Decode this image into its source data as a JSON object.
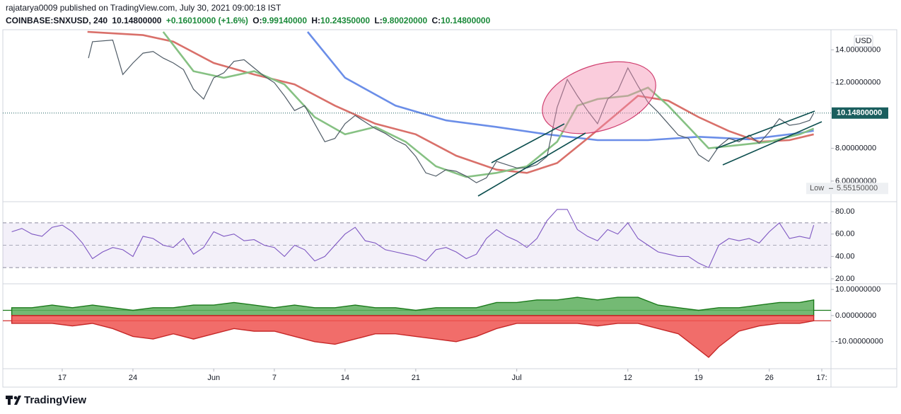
{
  "header": {
    "publisher": "rajatarya0009 published on TradingView.com, July 30, 2021 09:00:18 IST",
    "symbol": "COINBASE:SNXUSD, 240",
    "price": "10.14800000",
    "change": "+0.16010000 (+1.6%)",
    "open_key": "O:",
    "open": "9.99140000",
    "high_key": "H:",
    "high": "10.24350000",
    "low_key": "L:",
    "low": "9.80020000",
    "close_key": "C:",
    "close": "10.14800000"
  },
  "chart_data": [
    {
      "type": "line",
      "xlim": [
        11.4,
        92.9
      ],
      "ylim": [
        4.83,
        15.1
      ],
      "currency": "USD",
      "yticks": [
        {
          "value": 6,
          "label": "6.00000000"
        },
        {
          "value": 8,
          "label": "8.00000000"
        },
        {
          "value": 12,
          "label": "12.00000000"
        },
        {
          "value": 14,
          "label": "14.00000000"
        }
      ],
      "last_price": {
        "value": 10.148,
        "label": "10.14800000",
        "color": "#1a5e5e"
      },
      "low_marker": {
        "text": "Low",
        "value": 5.5515,
        "label": "5.55150000"
      },
      "series": [
        {
          "color": "#6b8ee8",
          "x": [
            41.3,
            45,
            50,
            55,
            60,
            65,
            70,
            75,
            80,
            85,
            90,
            91.4
          ],
          "values": [
            15.1,
            12.3,
            10.6,
            9.7,
            9.3,
            8.85,
            8.5,
            8.5,
            8.7,
            8.55,
            8.93,
            9.07
          ]
        },
        {
          "color": "#d9706a",
          "x": [
            19.5,
            25,
            28,
            32,
            36,
            40,
            44,
            48,
            52,
            56,
            60,
            63,
            66,
            69,
            72,
            74,
            77,
            80,
            83,
            86,
            89,
            91.4
          ],
          "values": [
            15.1,
            14.9,
            14.5,
            13.2,
            12.5,
            11.9,
            10.6,
            9.5,
            8.85,
            7.55,
            6.7,
            6.5,
            7.1,
            8.6,
            10.15,
            11.2,
            10.9,
            9.9,
            9.05,
            8.4,
            8.5,
            8.85
          ]
        },
        {
          "color": "#86c183",
          "x": [
            27,
            30,
            33,
            36,
            39,
            42,
            45,
            48,
            51,
            54,
            57,
            60,
            63,
            66,
            68,
            70,
            73,
            75,
            77,
            79,
            81,
            84,
            87,
            90,
            91.4
          ],
          "values": [
            15.1,
            12.7,
            12.3,
            12.7,
            11.9,
            9.9,
            8.85,
            9.3,
            8.4,
            6.9,
            6.25,
            6.5,
            6.9,
            8.4,
            10.6,
            11.0,
            11.2,
            11.7,
            10.6,
            9.3,
            8.0,
            8.2,
            8.4,
            8.85,
            9.2
          ]
        },
        {
          "color": "#4f5b66",
          "x": [
            19.6,
            20,
            22,
            23,
            24,
            25,
            26,
            27,
            28,
            29,
            30,
            31,
            32,
            33,
            34,
            35,
            36,
            37,
            38,
            39,
            40,
            41,
            42,
            43,
            44,
            45,
            46,
            47,
            48,
            49,
            50,
            51,
            52,
            53,
            54,
            55,
            56,
            57,
            58,
            59,
            60,
            61,
            62,
            63,
            64,
            65,
            66,
            67,
            68,
            69,
            70,
            71,
            72,
            73,
            74,
            75,
            76,
            77,
            78,
            79,
            80,
            81,
            82,
            83,
            84,
            85,
            86,
            87,
            88,
            89,
            90,
            91,
            91.4
          ],
          "values": [
            13.5,
            14.5,
            14.6,
            12.5,
            13.2,
            13.8,
            13.9,
            13.5,
            13.2,
            12.8,
            11.6,
            11.0,
            12.3,
            12.6,
            13.3,
            13.4,
            12.9,
            12.4,
            12.0,
            11.2,
            10.3,
            10.6,
            9.5,
            8.4,
            8.6,
            9.5,
            10.0,
            9.6,
            9.2,
            8.9,
            8.5,
            8.2,
            7.5,
            6.5,
            6.3,
            6.7,
            6.6,
            6.3,
            5.9,
            6.2,
            7.2,
            7.0,
            6.8,
            6.8,
            7.0,
            7.5,
            10.5,
            12.2,
            11.2,
            10.3,
            9.5,
            11.0,
            11.5,
            12.9,
            11.8,
            10.8,
            10.2,
            9.5,
            8.8,
            8.6,
            7.6,
            7.2,
            8.1,
            8.6,
            8.4,
            8.8,
            8.3,
            9.0,
            9.8,
            9.4,
            9.5,
            9.7,
            10.148
          ]
        }
      ]
    },
    {
      "type": "line",
      "xlim": [
        11.4,
        92.9
      ],
      "ylim": [
        16.2,
        87
      ],
      "yticks": [
        {
          "value": 20,
          "label": "20.00"
        },
        {
          "value": 40,
          "label": "40.00"
        },
        {
          "value": 60,
          "label": "60.00"
        },
        {
          "value": 80,
          "label": "80.00"
        }
      ],
      "band": [
        30,
        70
      ],
      "midline": 50,
      "series": [
        {
          "color": "#7e57c2",
          "x": [
            12,
            13,
            14,
            15,
            16,
            17,
            18,
            19,
            20,
            21,
            22,
            23,
            24,
            25,
            26,
            27,
            28,
            29,
            30,
            31,
            32,
            33,
            34,
            35,
            36,
            37,
            38,
            39,
            40,
            41,
            42,
            43,
            44,
            45,
            46,
            47,
            48,
            49,
            50,
            51,
            52,
            53,
            54,
            55,
            56,
            57,
            58,
            59,
            60,
            61,
            62,
            63,
            64,
            65,
            66,
            67,
            68,
            69,
            70,
            71,
            72,
            73,
            74,
            75,
            76,
            77,
            78,
            79,
            80,
            81,
            82,
            83,
            84,
            85,
            86,
            87,
            88,
            89,
            90,
            91,
            91.4
          ],
          "values": [
            62,
            65,
            60,
            58,
            66,
            68,
            62,
            52,
            38,
            44,
            48,
            46,
            40,
            58,
            56,
            50,
            48,
            56,
            42,
            48,
            62,
            58,
            60,
            54,
            55,
            50,
            48,
            40,
            50,
            46,
            36,
            40,
            50,
            60,
            66,
            54,
            52,
            46,
            44,
            42,
            40,
            36,
            46,
            48,
            44,
            38,
            42,
            56,
            64,
            58,
            54,
            48,
            56,
            72,
            82,
            82,
            64,
            58,
            54,
            64,
            60,
            70,
            56,
            50,
            44,
            42,
            40,
            40,
            34,
            30,
            50,
            56,
            54,
            56,
            52,
            62,
            70,
            56,
            58,
            56,
            68
          ]
        }
      ]
    },
    {
      "type": "area",
      "xlim": [
        11.4,
        92.9
      ],
      "ylim": [
        -20.1,
        11.9
      ],
      "yticks": [
        {
          "value": -10,
          "label": "-10.00000000"
        },
        {
          "value": 0,
          "label": "0.00000000"
        },
        {
          "value": 10,
          "label": "10.00000000"
        }
      ],
      "levels": [
        {
          "value": 2,
          "color": "#1b7a1b"
        },
        {
          "value": -2,
          "color": "#d32f2f"
        }
      ],
      "xticks": [
        {
          "value": 17,
          "label": "17"
        },
        {
          "value": 24,
          "label": "24"
        },
        {
          "value": 32,
          "label": "Jun"
        },
        {
          "value": 38,
          "label": "7"
        },
        {
          "value": 45,
          "label": "14"
        },
        {
          "value": 52,
          "label": "21"
        },
        {
          "value": 62,
          "label": "Jul"
        },
        {
          "value": 73,
          "label": "12"
        },
        {
          "value": 80,
          "label": "19"
        },
        {
          "value": 87,
          "label": "26"
        },
        {
          "value": 92.2,
          "label": "17:"
        }
      ],
      "series": [
        {
          "color": "#1b7a1b",
          "fill": "#5cae5c",
          "x": [
            12,
            14,
            16,
            18,
            20,
            22,
            24,
            26,
            28,
            30,
            32,
            34,
            36,
            38,
            40,
            42,
            44,
            46,
            48,
            50,
            52,
            54,
            56,
            58,
            60,
            62,
            64,
            66,
            68,
            70,
            72,
            74,
            76,
            78,
            80,
            82,
            84,
            86,
            88,
            90,
            91.4
          ],
          "values": [
            3,
            3,
            4,
            3,
            4,
            3,
            2,
            3,
            3,
            4,
            4,
            5,
            4,
            3,
            4,
            3,
            3,
            4,
            3,
            3,
            2,
            3,
            3,
            3,
            5,
            5,
            6,
            6,
            7,
            6,
            7,
            7,
            4,
            3,
            2,
            3,
            3,
            4,
            5,
            5,
            6
          ]
        },
        {
          "color": "#c62828",
          "fill": "#ef5350",
          "x": [
            12,
            14,
            16,
            18,
            20,
            22,
            24,
            26,
            28,
            30,
            32,
            34,
            36,
            38,
            40,
            42,
            44,
            46,
            48,
            50,
            52,
            54,
            56,
            58,
            60,
            62,
            64,
            66,
            68,
            70,
            72,
            74,
            76,
            78,
            80,
            81,
            82,
            84,
            86,
            88,
            90,
            91.4
          ],
          "values": [
            -3,
            -3,
            -3,
            -4,
            -3,
            -5,
            -8,
            -9,
            -7,
            -9,
            -7,
            -5,
            -6,
            -6,
            -8,
            -10,
            -11,
            -9,
            -7,
            -7,
            -8,
            -9,
            -10,
            -8,
            -5,
            -3,
            -3,
            -3,
            -3,
            -4,
            -3,
            -3,
            -5,
            -7,
            -13,
            -16,
            -12,
            -6,
            -4,
            -3,
            -3,
            -2
          ]
        }
      ]
    }
  ],
  "footer": {
    "brand": "TradingView"
  }
}
